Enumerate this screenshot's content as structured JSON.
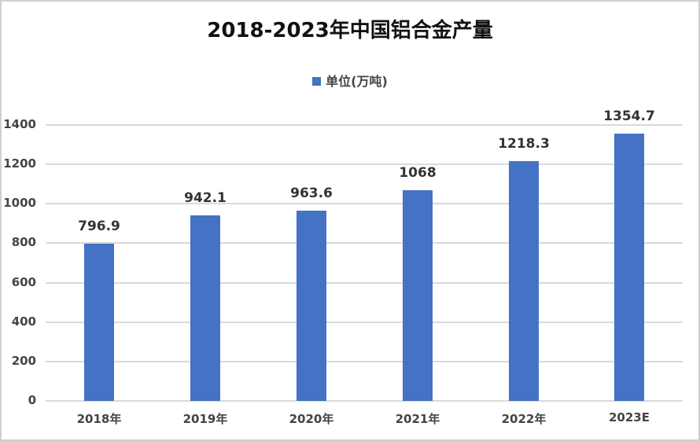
{
  "title": "2018-2023年中国铝合金产量",
  "legend": {
    "label": "单位(万吨)",
    "color": "#4472c4"
  },
  "y_axis": {
    "ticks": [
      "0",
      "200",
      "400",
      "600",
      "800",
      "1000",
      "1200",
      "1400"
    ]
  },
  "x_axis": {
    "ticks": [
      "2018年",
      "2019年",
      "2020年",
      "2021年",
      "2022年",
      "2023E"
    ]
  },
  "data_labels": [
    "796.9",
    "942.1",
    "963.6",
    "1068",
    "1218.3",
    "1354.7"
  ],
  "chart_data": {
    "type": "bar",
    "title": "2018-2023年中国铝合金产量",
    "categories": [
      "2018年",
      "2019年",
      "2020年",
      "2021年",
      "2022年",
      "2023E"
    ],
    "series": [
      {
        "name": "单位(万吨)",
        "values": [
          796.9,
          942.1,
          963.6,
          1068,
          1218.3,
          1354.7
        ],
        "color": "#4472c4"
      }
    ],
    "xlabel": "",
    "ylabel": "",
    "ylim": [
      0,
      1400
    ],
    "yticks": [
      0,
      200,
      400,
      600,
      800,
      1000,
      1200,
      1400
    ],
    "grid": true,
    "legend_position": "top",
    "data_labels": true
  }
}
